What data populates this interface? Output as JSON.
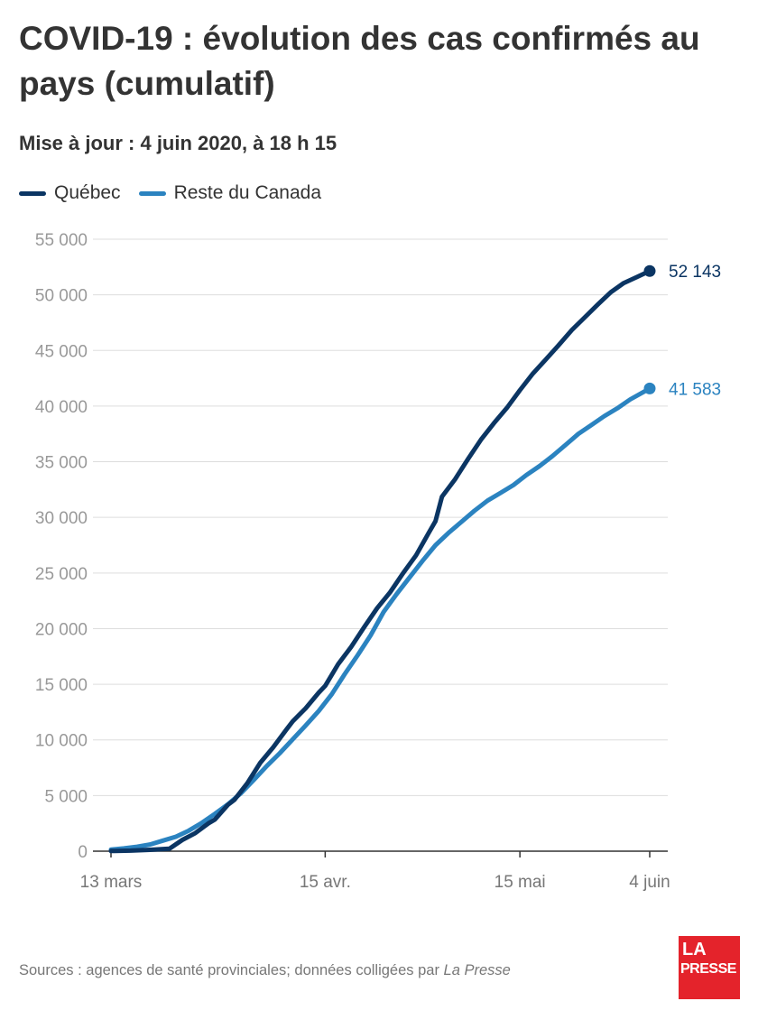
{
  "title": "COVID-19 : évolution des cas confirmés au pays (cumulatif)",
  "subtitle": "Mise à jour : 4 juin 2020, à 18 h 15",
  "source": {
    "text": "Sources : agences de santé provinciales; données colligées par ",
    "publication": "La Presse"
  },
  "logo": {
    "line1": "LA",
    "line2": "PRESSE",
    "color": "#e4232b"
  },
  "chart_data": {
    "type": "line",
    "title": "COVID-19 : évolution des cas confirmés au pays (cumulatif)",
    "subtitle": "Mise à jour : 4 juin 2020, à 18 h 15",
    "xlabel": "",
    "ylabel": "",
    "xlim": [
      "2020-03-13",
      "2020-06-04"
    ],
    "ylim": [
      0,
      55000
    ],
    "grid": true,
    "legend_position": "top-left",
    "x_ticks": [
      {
        "date": "2020-03-13",
        "label": "13 mars"
      },
      {
        "date": "2020-04-15",
        "label": "15 avr."
      },
      {
        "date": "2020-05-15",
        "label": "15 mai"
      },
      {
        "date": "2020-06-04",
        "label": "4 juin"
      }
    ],
    "y_ticks": [
      {
        "value": 0,
        "label": "0"
      },
      {
        "value": 5000,
        "label": "5 000"
      },
      {
        "value": 10000,
        "label": "10 000"
      },
      {
        "value": 15000,
        "label": "15 000"
      },
      {
        "value": 20000,
        "label": "20 000"
      },
      {
        "value": 25000,
        "label": "25 000"
      },
      {
        "value": 30000,
        "label": "30 000"
      },
      {
        "value": 35000,
        "label": "35 000"
      },
      {
        "value": 40000,
        "label": "40 000"
      },
      {
        "value": 45000,
        "label": "45 000"
      },
      {
        "value": 50000,
        "label": "50 000"
      },
      {
        "value": 55000,
        "label": "55 000"
      }
    ],
    "series": [
      {
        "name": "Québec",
        "color": "#0b3563",
        "end_label": "52 143",
        "points": [
          [
            "2020-03-13",
            17
          ],
          [
            "2020-03-16",
            50
          ],
          [
            "2020-03-19",
            121
          ],
          [
            "2020-03-22",
            221
          ],
          [
            "2020-03-24",
            1013
          ],
          [
            "2020-03-26",
            1629
          ],
          [
            "2020-03-28",
            2498
          ],
          [
            "2020-03-29",
            2840
          ],
          [
            "2020-03-31",
            4162
          ],
          [
            "2020-04-01",
            4611
          ],
          [
            "2020-04-03",
            6101
          ],
          [
            "2020-04-05",
            7944
          ],
          [
            "2020-04-07",
            9340
          ],
          [
            "2020-04-09",
            10912
          ],
          [
            "2020-04-10",
            11677
          ],
          [
            "2020-04-12",
            12846
          ],
          [
            "2020-04-14",
            14248
          ],
          [
            "2020-04-15",
            14860
          ],
          [
            "2020-04-17",
            16798
          ],
          [
            "2020-04-19",
            18357
          ],
          [
            "2020-04-21",
            20126
          ],
          [
            "2020-04-23",
            21838
          ],
          [
            "2020-04-25",
            23267
          ],
          [
            "2020-04-27",
            24982
          ],
          [
            "2020-04-29",
            26594
          ],
          [
            "2020-05-01",
            28648
          ],
          [
            "2020-05-02",
            29656
          ],
          [
            "2020-05-03",
            31865
          ],
          [
            "2020-05-05",
            33417
          ],
          [
            "2020-05-07",
            35238
          ],
          [
            "2020-05-09",
            36986
          ],
          [
            "2020-05-11",
            38469
          ],
          [
            "2020-05-13",
            39845
          ],
          [
            "2020-05-15",
            41420
          ],
          [
            "2020-05-17",
            42920
          ],
          [
            "2020-05-19",
            44197
          ],
          [
            "2020-05-21",
            45495
          ],
          [
            "2020-05-23",
            46838
          ],
          [
            "2020-05-25",
            47984
          ],
          [
            "2020-05-27",
            49139
          ],
          [
            "2020-05-29",
            50232
          ],
          [
            "2020-05-31",
            51059
          ],
          [
            "2020-06-02",
            51593
          ],
          [
            "2020-06-04",
            52143
          ]
        ]
      },
      {
        "name": "Reste du Canada",
        "color": "#2b83c0",
        "end_label": "41 583",
        "points": [
          [
            "2020-03-13",
            150
          ],
          [
            "2020-03-15",
            250
          ],
          [
            "2020-03-17",
            400
          ],
          [
            "2020-03-19",
            600
          ],
          [
            "2020-03-21",
            950
          ],
          [
            "2020-03-23",
            1300
          ],
          [
            "2020-03-25",
            1850
          ],
          [
            "2020-03-27",
            2550
          ],
          [
            "2020-03-29",
            3350
          ],
          [
            "2020-03-31",
            4200
          ],
          [
            "2020-04-02",
            5200
          ],
          [
            "2020-04-04",
            6400
          ],
          [
            "2020-04-06",
            7650
          ],
          [
            "2020-04-08",
            8800
          ],
          [
            "2020-04-10",
            10050
          ],
          [
            "2020-04-12",
            11300
          ],
          [
            "2020-04-14",
            12600
          ],
          [
            "2020-04-16",
            14100
          ],
          [
            "2020-04-18",
            15900
          ],
          [
            "2020-04-20",
            17600
          ],
          [
            "2020-04-22",
            19400
          ],
          [
            "2020-04-24",
            21500
          ],
          [
            "2020-04-26",
            23100
          ],
          [
            "2020-04-28",
            24600
          ],
          [
            "2020-04-30",
            26100
          ],
          [
            "2020-05-02",
            27500
          ],
          [
            "2020-05-04",
            28600
          ],
          [
            "2020-05-06",
            29600
          ],
          [
            "2020-05-08",
            30600
          ],
          [
            "2020-05-10",
            31500
          ],
          [
            "2020-05-12",
            32200
          ],
          [
            "2020-05-14",
            32900
          ],
          [
            "2020-05-16",
            33800
          ],
          [
            "2020-05-18",
            34600
          ],
          [
            "2020-05-20",
            35500
          ],
          [
            "2020-05-22",
            36500
          ],
          [
            "2020-05-24",
            37500
          ],
          [
            "2020-05-26",
            38300
          ],
          [
            "2020-05-28",
            39100
          ],
          [
            "2020-05-30",
            39800
          ],
          [
            "2020-06-01",
            40600
          ],
          [
            "2020-06-04",
            41583
          ]
        ]
      }
    ]
  }
}
